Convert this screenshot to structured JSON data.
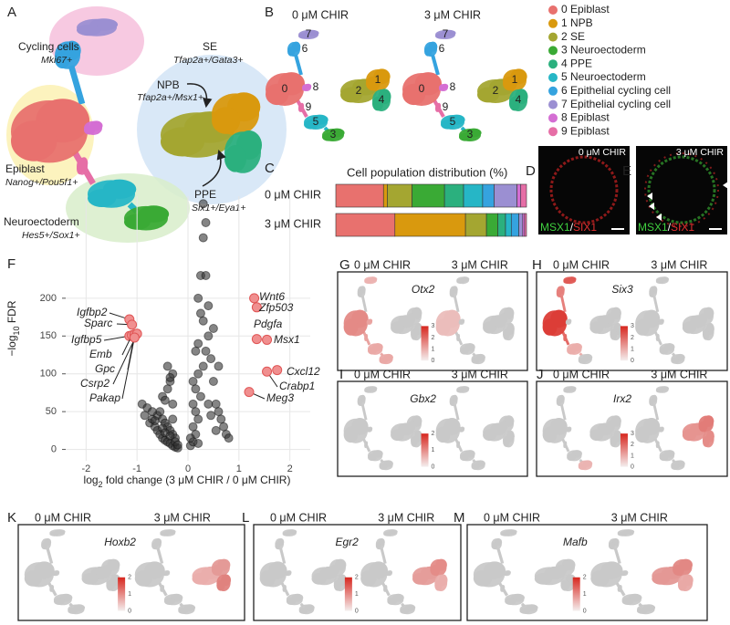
{
  "chart_data": [
    {
      "type": "bar",
      "orientation": "horizontal",
      "stacked": true,
      "title": "Cell population distribution (%)",
      "categories": [
        "0 μM CHIR",
        "3 μM CHIR"
      ],
      "xlim": [
        0,
        100
      ],
      "series": [
        {
          "name": "0 Epiblast",
          "color": "#e8716e",
          "values": [
            25,
            31
          ]
        },
        {
          "name": "1 NPB",
          "color": "#d9990e",
          "values": [
            2,
            37
          ]
        },
        {
          "name": "2 SE",
          "color": "#a4a631",
          "values": [
            13,
            11
          ]
        },
        {
          "name": "3 Neuroectoderm",
          "color": "#3aaa35",
          "values": [
            17,
            6
          ]
        },
        {
          "name": "4 PPE",
          "color": "#2bb07e",
          "values": [
            10,
            4
          ]
        },
        {
          "name": "5 Neuroectoderm",
          "color": "#26b6c6",
          "values": [
            10,
            3
          ]
        },
        {
          "name": "6 Epithelial cycling cell",
          "color": "#35a3df",
          "values": [
            6,
            4
          ]
        },
        {
          "name": "7 Epithelial cycling cell",
          "color": "#9b8fd2",
          "values": [
            12,
            2
          ]
        },
        {
          "name": "8 Epiblast",
          "color": "#d46ed3",
          "values": [
            2,
            1
          ]
        },
        {
          "name": "9 Epiblast",
          "color": "#e66ea6",
          "values": [
            3,
            1
          ]
        }
      ]
    },
    {
      "type": "scatter",
      "xlabel": [
        "log",
        "2",
        " fold change (3 μM CHIR / 0 μM CHIR)"
      ],
      "ylabel": [
        "−log",
        "10",
        " FDR"
      ],
      "xlim": [
        -2.4,
        2.4
      ],
      "ylim": [
        -15,
        335
      ],
      "xticks": [
        -2,
        -1,
        0,
        1,
        2
      ],
      "yticks": [
        0,
        50,
        100,
        150,
        200
      ],
      "grid": true,
      "series": [
        {
          "color": "#333333",
          "x": [
            -0.9,
            -0.85,
            -0.8,
            -0.75,
            -0.7,
            -0.65,
            -0.6,
            -0.55,
            -0.5,
            -0.45,
            -0.4,
            -0.35,
            -0.3,
            -0.25,
            -0.2,
            -0.5,
            -0.45,
            -0.4,
            -0.35,
            -0.3,
            -0.6,
            -0.55,
            -0.5,
            -0.45,
            -0.4,
            -0.35,
            -0.3,
            -0.25,
            -0.7,
            -0.65,
            -0.4,
            -0.35,
            -0.3,
            -0.5,
            -0.45,
            -0.25,
            -0.2,
            -0.3,
            -0.35,
            0.05,
            0.1,
            0.1,
            0.15,
            0.15,
            0.2,
            0.2,
            0.25,
            0.25,
            0.3,
            0.3,
            0.35,
            0.35,
            0.4,
            0.4,
            0.45,
            0.5,
            0.55,
            0.6,
            0.65,
            0.7,
            0.75,
            0.8,
            0.1,
            0.15,
            0.2,
            0.25,
            0.3,
            0.35,
            0.4,
            0.5,
            0.6,
            0.15,
            0.2,
            0.3,
            0.45,
            0.55,
            0.05,
            0.1,
            0.2
          ],
          "values": [
            60,
            45,
            55,
            35,
            40,
            30,
            25,
            20,
            15,
            12,
            10,
            8,
            5,
            3,
            2,
            70,
            65,
            80,
            90,
            100,
            45,
            50,
            40,
            35,
            30,
            25,
            20,
            15,
            50,
            38,
            110,
            95,
            60,
            28,
            22,
            10,
            6,
            40,
            18,
            5,
            10,
            30,
            50,
            80,
            100,
            140,
            180,
            230,
            280,
            325,
            300,
            230,
            190,
            150,
            120,
            90,
            60,
            50,
            40,
            30,
            20,
            15,
            60,
            20,
            40,
            70,
            110,
            130,
            60,
            160,
            110,
            130,
            200,
            170,
            45,
            25,
            15,
            90,
            8
          ]
        },
        {
          "color": "#f08f8f",
          "labels": [
            "Wnt6",
            "Zfp503",
            "Pdgfa",
            "Msx1",
            "Cxcl12",
            "Crabp1",
            "Meg3",
            "Igfbp2",
            "Sparc",
            "Igfbp5",
            "Emb",
            "Gpc",
            "Csrp2",
            "Pakap"
          ],
          "x": [
            1.3,
            1.35,
            1.35,
            1.55,
            1.75,
            1.55,
            1.2,
            -1.15,
            -1.1,
            -1.15,
            -1.1,
            -1.05,
            -1.0,
            -1.05
          ],
          "values": [
            200,
            188,
            146,
            145,
            105,
            103,
            76,
            172,
            165,
            150,
            151,
            152,
            153,
            148
          ]
        }
      ]
    }
  ],
  "panels": {
    "A": {
      "letter": "A",
      "annotations": [
        {
          "name": "Cycling cells",
          "markers": "Mki67+"
        },
        {
          "name": "SE",
          "markers": "Tfap2a+/Gata3+"
        },
        {
          "name": "NPB",
          "markers": "Tfap2a+/Msx1+"
        },
        {
          "name": "Epiblast",
          "markers": "Nanog+/Pou5f1+"
        },
        {
          "name": "PPE",
          "markers": "Six1+/Eya1+"
        },
        {
          "name": "Neuroectoderm",
          "markers": "Hes5+/Sox1+"
        }
      ]
    },
    "B": {
      "letter": "B",
      "conditions": [
        "0 μM CHIR",
        "3 μM CHIR"
      ],
      "cluster_ids": [
        "0",
        "1",
        "2",
        "3",
        "4",
        "5",
        "6",
        "7",
        "8",
        "9"
      ]
    },
    "C": {
      "letter": "C"
    },
    "D": {
      "letter": "D",
      "condition": "0 μM CHIR",
      "stain": [
        "MSX1",
        "/",
        "SIX1"
      ]
    },
    "E": {
      "letter": "E",
      "condition": "3 μM CHIR",
      "stain": [
        "MSX1",
        "/",
        "SIX1"
      ]
    },
    "F": {
      "letter": "F"
    },
    "G": {
      "letter": "G",
      "conditions": [
        "0 μM CHIR",
        "3 μM CHIR"
      ],
      "gene": "Otx2",
      "scale_ticks": [
        0,
        1,
        2,
        3
      ]
    },
    "H": {
      "letter": "H",
      "conditions": [
        "0 μM CHIR",
        "3 μM CHIR"
      ],
      "gene": "Six3",
      "scale_ticks": [
        0,
        1,
        2,
        3
      ]
    },
    "I": {
      "letter": "I",
      "conditions": [
        "0 μM CHIR",
        "3 μM CHIR"
      ],
      "gene": "Gbx2",
      "scale_ticks": [
        0,
        1,
        2
      ]
    },
    "J": {
      "letter": "J",
      "conditions": [
        "0 μM CHIR",
        "3 μM CHIR"
      ],
      "gene": "Irx2",
      "scale_ticks": [
        0,
        1,
        2,
        3
      ]
    },
    "K": {
      "letter": "K",
      "conditions": [
        "0 μM CHIR",
        "3 μM CHIR"
      ],
      "gene": "Hoxb2",
      "scale_ticks": [
        0,
        1,
        2
      ]
    },
    "L": {
      "letter": "L",
      "conditions": [
        "0 μM CHIR",
        "3 μM CHIR"
      ],
      "gene": "Egr2",
      "scale_ticks": [
        0,
        1,
        2
      ]
    },
    "M": {
      "letter": "M",
      "conditions": [
        "0 μM CHIR",
        "3 μM CHIR"
      ],
      "gene": "Mafb",
      "scale_ticks": [
        0,
        1,
        2
      ]
    }
  }
}
